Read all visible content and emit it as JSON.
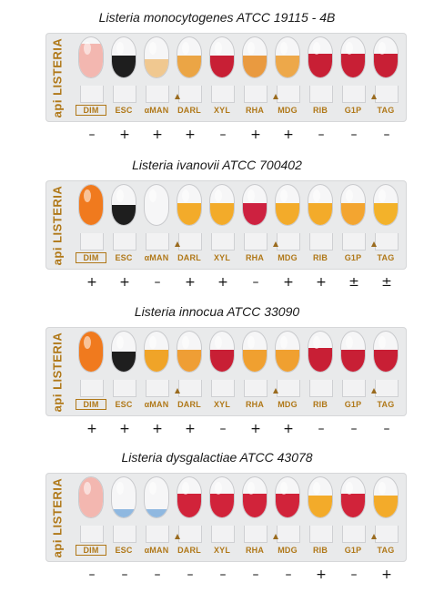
{
  "brand": "api LISTERIA",
  "test_labels": [
    "DIM",
    "ESC",
    "αMAN",
    "DARL",
    "XYL",
    "RHA",
    "MDG",
    "RIB",
    "G1P",
    "TAG"
  ],
  "panels": [
    {
      "title": "Listeria monocytogenes ATCC 19115 - 4B",
      "results": [
        "–",
        "+",
        "+",
        "+",
        "–",
        "+",
        "+",
        "–",
        "–",
        "–"
      ],
      "colors": [
        "#f3b7b0",
        "#1e1e1e",
        "#f0c890",
        "#eba545",
        "#c81f35",
        "#e99a40",
        "#eda84a",
        "#c81f35",
        "#c81f35",
        "#c81f35"
      ],
      "fill": [
        0.85,
        0.55,
        0.45,
        0.55,
        0.55,
        0.55,
        0.55,
        0.6,
        0.6,
        0.6
      ]
    },
    {
      "title": "Listeria ivanovii ATCC 700402",
      "results": [
        "+",
        "+",
        "–",
        "+",
        "+",
        "–",
        "+",
        "+",
        "±",
        "±"
      ],
      "colors": [
        "#f07a1e",
        "#1e1e1e",
        "#ffffff",
        "#f3ab2a",
        "#f3ab2a",
        "#cd2140",
        "#f3ab2a",
        "#f3ab2a",
        "#f3a530",
        "#f3b22a"
      ],
      "fill": [
        0.95,
        0.5,
        0.0,
        0.55,
        0.55,
        0.55,
        0.55,
        0.55,
        0.55,
        0.55
      ]
    },
    {
      "title": "Listeria innocua ATCC 33090",
      "results": [
        "+",
        "+",
        "+",
        "+",
        "–",
        "+",
        "+",
        "–",
        "–",
        "–"
      ],
      "colors": [
        "#f07a1e",
        "#1e1e1e",
        "#f0a428",
        "#ef9e35",
        "#c81f35",
        "#f0a030",
        "#f0a030",
        "#c81f35",
        "#c81f35",
        "#c81f35"
      ],
      "fill": [
        0.95,
        0.5,
        0.55,
        0.55,
        0.55,
        0.55,
        0.55,
        0.6,
        0.55,
        0.55
      ]
    },
    {
      "title": "Listeria dysgalactiae ATCC 43078",
      "results": [
        "–",
        "–",
        "–",
        "–",
        "–",
        "–",
        "–",
        "+",
        "–",
        "+"
      ],
      "colors": [
        "#f3b7b0",
        "#8fb8e0",
        "#8fb8e0",
        "#d1233a",
        "#d1233a",
        "#d1233a",
        "#d1233a",
        "#f3ab2a",
        "#d1233a",
        "#f3ab2a"
      ],
      "fill": [
        0.9,
        0.2,
        0.2,
        0.6,
        0.6,
        0.6,
        0.6,
        0.55,
        0.6,
        0.55
      ]
    }
  ]
}
